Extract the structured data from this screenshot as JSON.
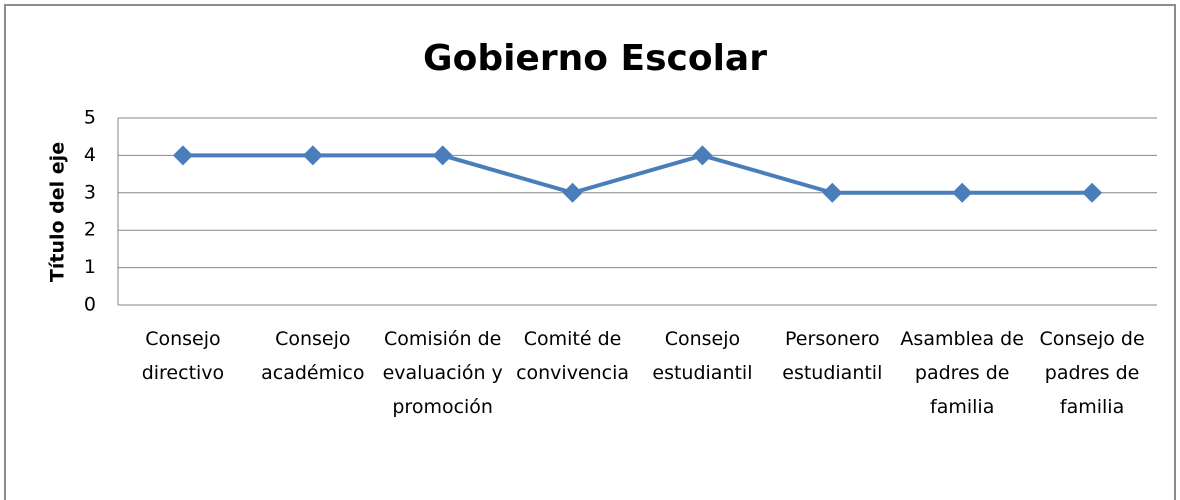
{
  "chart_data": {
    "type": "line",
    "title": "Gobierno Escolar",
    "y_label": "Título del eje",
    "categories": [
      "Consejo directivo",
      "Consejo académico",
      "Comisión de evaluación y promoción",
      "Comité de convivencia",
      "Consejo estudiantil",
      "Personero estudiantil",
      "Asamblea de padres de familia",
      "Consejo de padres de familia"
    ],
    "values": [
      4,
      4,
      4,
      3,
      4,
      3,
      3,
      3
    ],
    "color": "#4a7ebb",
    "ylim": [
      0,
      5
    ],
    "yticks": [
      0,
      1,
      2,
      3,
      4,
      5
    ],
    "grid": true
  }
}
